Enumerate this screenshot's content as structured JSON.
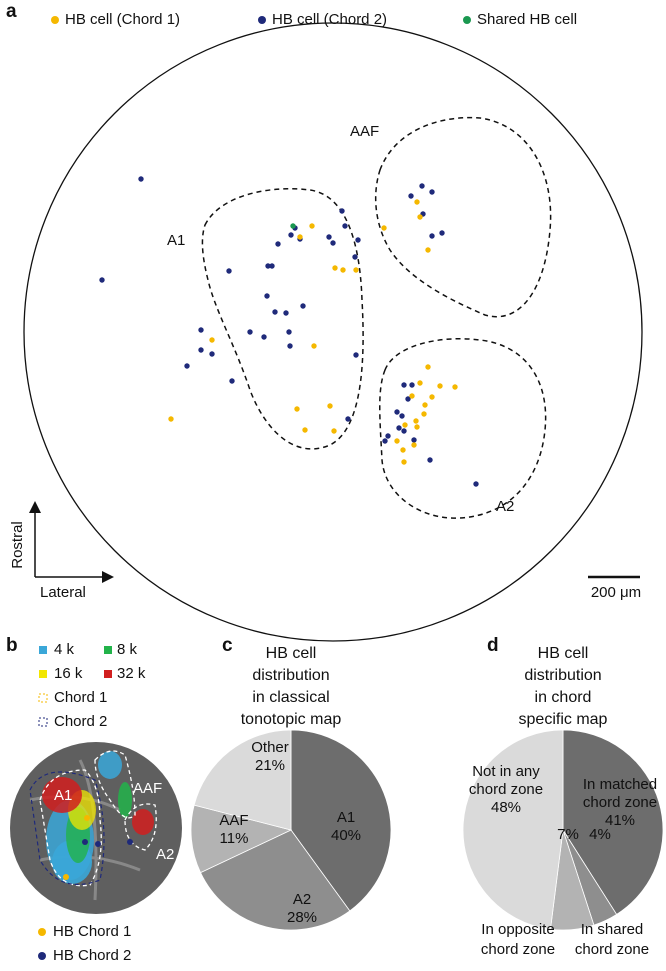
{
  "panel_a": {
    "letter": "a",
    "legend": [
      "HB cell (Chord 1)",
      "HB cell (Chord 2)",
      "Shared HB cell"
    ],
    "regions": [
      "AAF",
      "A1",
      "A2"
    ],
    "axes": [
      "Rostral",
      "Lateral"
    ],
    "scale_bar": "200 μm"
  },
  "panel_b": {
    "letter": "b",
    "legend": [
      "4 k",
      "8 k",
      "16 k",
      "32 k",
      "Chord 1",
      "Chord 2"
    ],
    "regions": [
      "A1",
      "AAF",
      "A2"
    ],
    "cells": [
      "HB Chord 1",
      "HB Chord 2"
    ]
  },
  "chart_data": [
    {
      "type": "pie",
      "letter": "c",
      "title": [
        "HB cell",
        "distribution",
        "in classical",
        "tonotopic map"
      ],
      "categories": [
        [
          "A1"
        ],
        [
          "A2"
        ],
        [
          "AAF"
        ],
        [
          "Other"
        ]
      ],
      "values": [
        40,
        28,
        11,
        21
      ],
      "value_labels": [
        "40%",
        "28%",
        "11%",
        "21%"
      ],
      "colors": [
        "#6d6d6d",
        "#8e8e8e",
        "#b3b3b3",
        "#dadada"
      ]
    },
    {
      "type": "pie",
      "letter": "d",
      "title": [
        "HB cell",
        "distribution",
        "in chord",
        "specific map"
      ],
      "categories": [
        [
          "In matched",
          "chord zone"
        ],
        [
          "In shared",
          "chord zone"
        ],
        [
          "In opposite",
          "chord zone"
        ],
        [
          "Not in any",
          "chord zone"
        ]
      ],
      "values": [
        41,
        4,
        7,
        48
      ],
      "value_labels": [
        "41%",
        "4%",
        "7%",
        "48%"
      ],
      "colors": [
        "#6d6d6d",
        "#8e8e8e",
        "#b3b3b3",
        "#dadada"
      ]
    }
  ]
}
